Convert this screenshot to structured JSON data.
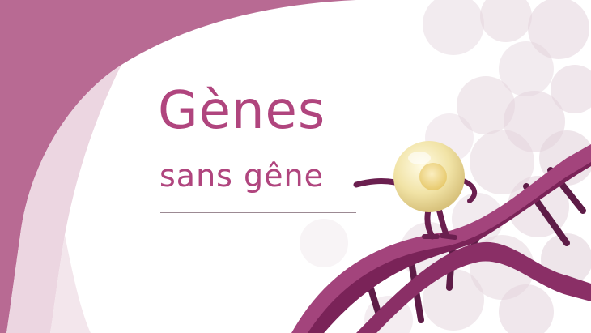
{
  "colors": {
    "brand": "#b0457e",
    "wave_dark": "#b86a93",
    "wave_light": "#e9cfdc",
    "bubble": "#e3d3dc",
    "dna_strand": "#7a2358",
    "dna_strand_light": "#a3447c",
    "character_body": "#f4e8b0",
    "character_limbs": "#6a1f4f"
  },
  "title": {
    "line1": "Gènes",
    "line2": "sans gêne"
  },
  "icons": [
    "molecule-mascot",
    "dna-helix",
    "cell-bubbles"
  ]
}
